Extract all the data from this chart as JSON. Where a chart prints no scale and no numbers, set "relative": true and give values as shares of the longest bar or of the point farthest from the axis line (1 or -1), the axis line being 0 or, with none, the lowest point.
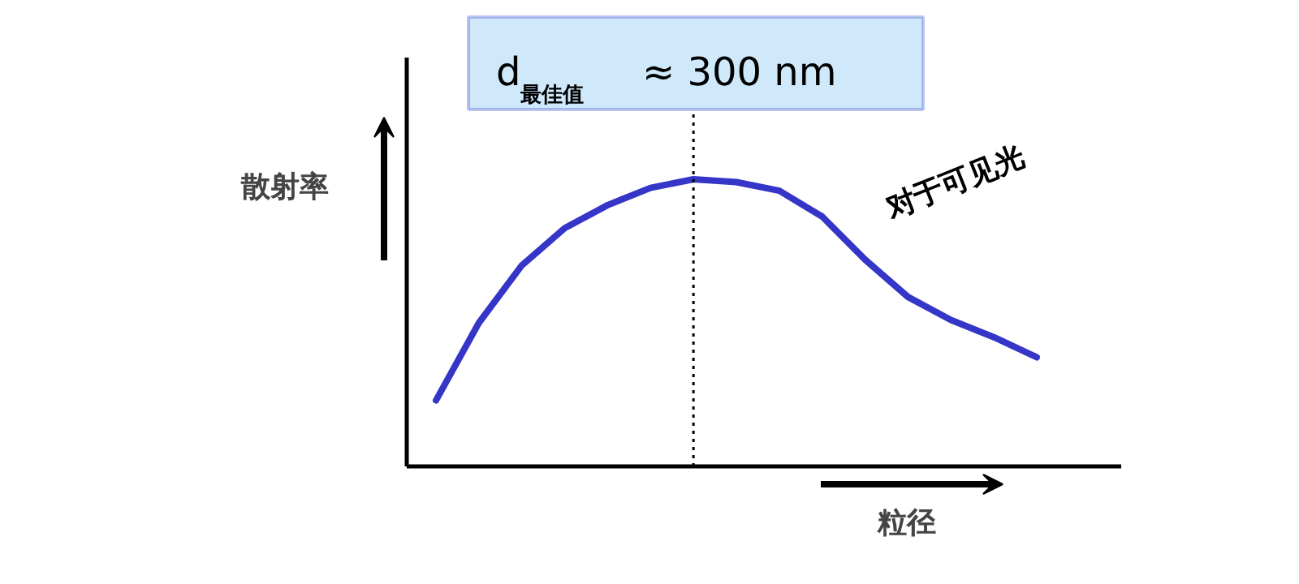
{
  "chart_data": {
    "type": "line",
    "relative": true,
    "xlabel": "粒径",
    "ylabel": "散射率",
    "categories": [
      null,
      null,
      null,
      null,
      null,
      null,
      null,
      null,
      null,
      null,
      null,
      null,
      null,
      null,
      null
    ],
    "series": [
      {
        "color": "#3535c8",
        "values": [
          0.23,
          0.5,
          0.7,
          0.83,
          0.91,
          0.97,
          1.0,
          0.99,
          0.96,
          0.87,
          0.72,
          0.59,
          0.51,
          0.45,
          0.38
        ]
      }
    ],
    "annotations": [
      "d$_{最佳值}$ ≈ 300 nm",
      "对于可见光"
    ],
    "marker": "none",
    "line_style": "solid"
  }
}
